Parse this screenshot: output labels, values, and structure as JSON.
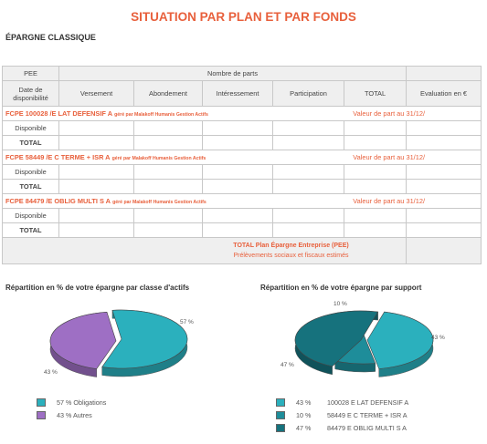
{
  "page": {
    "title": "SITUATION PAR PLAN ET PAR FONDS",
    "subtitle": "ÉPARGNE CLASSIQUE"
  },
  "table": {
    "col_pee": "PEE",
    "col_nombre_parts": "Nombre de parts",
    "col_date": "Date de disponibilité",
    "col_versement": "Versement",
    "col_abondement": "Abondement",
    "col_interessement": "Intéressement",
    "col_participation": "Participation",
    "col_total": "TOTAL",
    "col_evaluation": "Evaluation en €",
    "funds": [
      {
        "name": "FCPE 100028 /E LAT DEFENSIF A",
        "manager": "géré par Malakoff Humanis Gestion Actifs",
        "value_label": "Valeur de part au 31/12/",
        "row1": "Disponible",
        "row2": "TOTAL"
      },
      {
        "name": "FCPE  58449 /E C TERME + ISR A",
        "manager": "géré par Malakoff Humanis Gestion Actifs",
        "value_label": "Valeur de part au 31/12/",
        "row1": "Disponible",
        "row2": "TOTAL"
      },
      {
        "name": "FCPE  84479 /E OBLIG MULTI S A",
        "manager": "géré par Malakoff Humanis Gestion Actifs",
        "value_label": "Valeur de part au 31/12/",
        "row1": "Disponible",
        "row2": "TOTAL"
      }
    ],
    "total_line1": "TOTAL Plan Épargne Entreprise (PEE)",
    "total_line2": "Prélèvements sociaux et fiscaux estimés"
  },
  "chart_data": [
    {
      "type": "pie",
      "title": "Répartition en % de votre épargne par classe d'actifs",
      "slices": [
        {
          "label": "Obligations",
          "value": 57,
          "value_label": "57 %",
          "legend": "57 % Obligations",
          "color": "#2bb0bd"
        },
        {
          "label": "Autres",
          "value": 43,
          "value_label": "43 %",
          "legend": "43 % Autres",
          "color": "#9e6fc4"
        }
      ]
    },
    {
      "type": "pie",
      "title": "Répartition en % de votre épargne par support",
      "slices": [
        {
          "label": "100028 E LAT DEFENSIF A",
          "value": 43,
          "value_label": "43 %",
          "legend_pct": "43 %",
          "legend_name": "100028 E LAT DEFENSIF A",
          "color": "#2bb0bd"
        },
        {
          "label": "58449 E C TERME + ISR A",
          "value": 10,
          "value_label": "10 %",
          "legend_pct": "10 %",
          "legend_name": "58449 E C TERME + ISR A",
          "color": "#1e8d9a"
        },
        {
          "label": "84479 E OBLIG MULTI S A",
          "value": 47,
          "value_label": "47 %",
          "legend_pct": "47 %",
          "legend_name": "84479 E OBLIG MULTI S A",
          "color": "#16727d"
        }
      ]
    }
  ]
}
